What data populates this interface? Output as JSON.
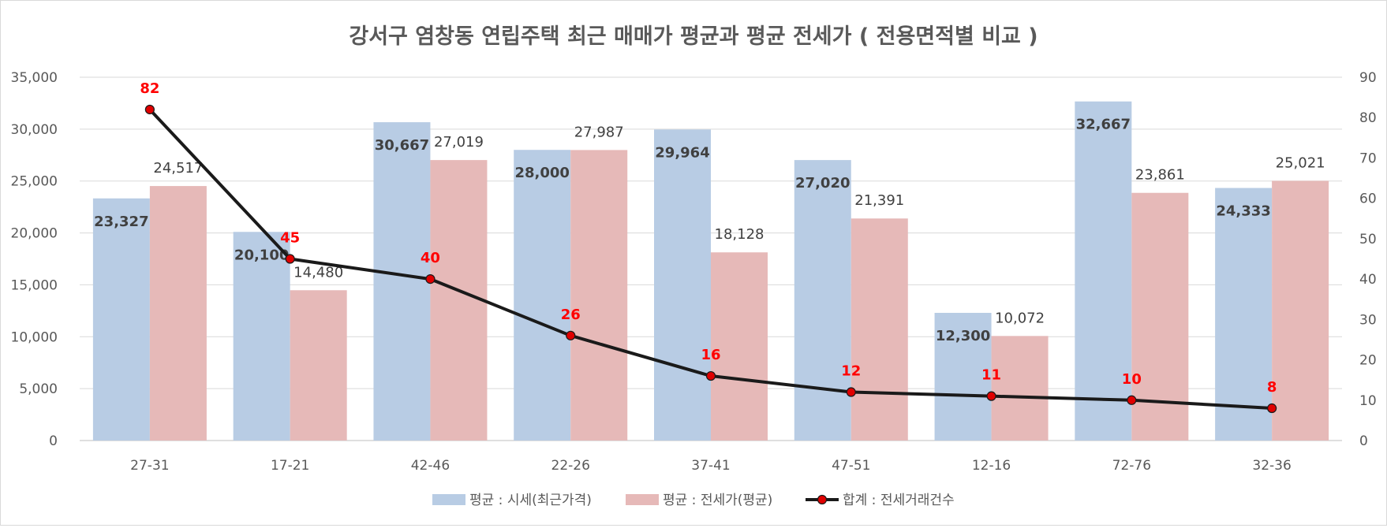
{
  "chart_data": {
    "type": "bar+line",
    "title": "강서구 염창동 연립주택 최근 매매가 평균과 평균 전세가 ( 전용면적별 비교 )",
    "categories": [
      "27-31",
      "17-21",
      "42-46",
      "22-26",
      "37-41",
      "47-51",
      "12-16",
      "72-76",
      "32-36"
    ],
    "series": [
      {
        "name": "평균 : 시세(최근가격)",
        "type": "bar",
        "axis": "left",
        "color": "#b8cce4",
        "values": [
          23327,
          20100,
          30667,
          28000,
          29964,
          27020,
          12300,
          32667,
          24333
        ],
        "labels": [
          "23,327",
          "20,100",
          "30,667",
          "28,000",
          "29,964",
          "27,020",
          "12,300",
          "32,667",
          "24,333"
        ]
      },
      {
        "name": "평균 : 전세가(평균)",
        "type": "bar",
        "axis": "left",
        "color": "#e6b9b8",
        "values": [
          24517,
          14480,
          27019,
          27987,
          18128,
          21391,
          10072,
          23861,
          25021
        ],
        "labels": [
          "24,517",
          "14,480",
          "27,019",
          "27,987",
          "18,128",
          "21,391",
          "10,072",
          "23,861",
          "25,021"
        ]
      },
      {
        "name": "합계 : 전세거래건수",
        "type": "line",
        "axis": "right",
        "color": "#1a1a1a",
        "marker_color": "#e00000",
        "label_color": "#ff0000",
        "values": [
          82,
          45,
          40,
          26,
          16,
          12,
          11,
          10,
          8
        ],
        "labels": [
          "82",
          "45",
          "40",
          "26",
          "16",
          "12",
          "11",
          "10",
          "8"
        ]
      }
    ],
    "y_left": {
      "min": 0,
      "max": 35000,
      "ticks": [
        0,
        5000,
        10000,
        15000,
        20000,
        25000,
        30000,
        35000
      ],
      "tick_labels": [
        "0",
        "5,000",
        "10,000",
        "15,000",
        "20,000",
        "25,000",
        "30,000",
        "35,000"
      ]
    },
    "y_right": {
      "min": 0,
      "max": 90,
      "ticks": [
        0,
        10,
        20,
        30,
        40,
        50,
        60,
        70,
        80,
        90
      ],
      "tick_labels": [
        "0",
        "10",
        "20",
        "30",
        "40",
        "50",
        "60",
        "70",
        "80",
        "90"
      ]
    },
    "grid": true,
    "legend_position": "bottom"
  }
}
